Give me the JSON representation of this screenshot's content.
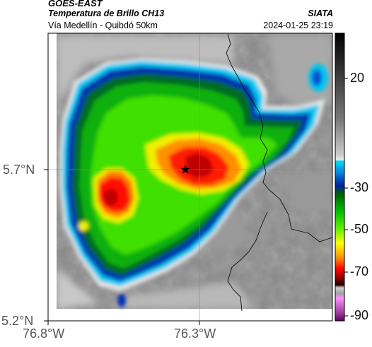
{
  "header": {
    "satellite": "GOES-EAST",
    "product": "Temperatura de Brillo CH13",
    "region": "Vía Medellín - Quibdó 50km",
    "source": "SIATA",
    "datetime": "2024-01-25 23:19"
  },
  "map": {
    "x_ticks": [
      "76.8°W",
      "76.3°W"
    ],
    "y_ticks": [
      "5.7°N",
      "5.2°N"
    ],
    "marker": "star-marker"
  },
  "colorbar": {
    "tick_labels": [
      "20",
      "-30",
      "-50",
      "-70",
      "-90"
    ],
    "colors": [
      "#111111",
      "#5a5a5a",
      "#9a9a9a",
      "#d8d8d8",
      "#00e0f0",
      "#0050d0",
      "#00aa00",
      "#40e000",
      "#ffff00",
      "#ff8000",
      "#ff0000",
      "#800000",
      "#000000",
      "#ff80ff",
      "#800080"
    ]
  }
}
